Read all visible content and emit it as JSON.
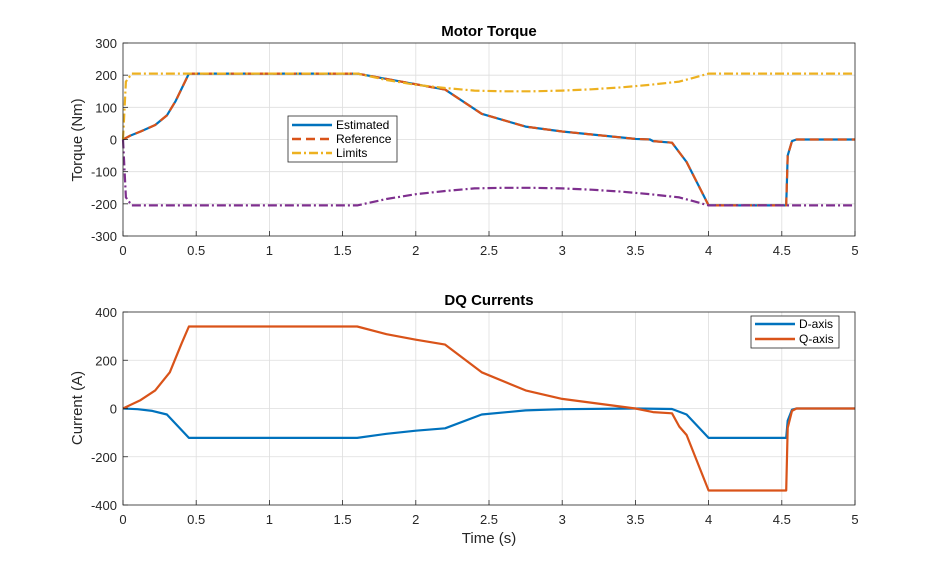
{
  "chart_data": [
    {
      "type": "line",
      "title": "Motor Torque",
      "xlabel": "",
      "ylabel": "Torque (Nm)",
      "xlim": [
        0,
        5
      ],
      "ylim": [
        -300,
        300
      ],
      "xticks": [
        0,
        0.5,
        1,
        1.5,
        2,
        2.5,
        3,
        3.5,
        4,
        4.5,
        5
      ],
      "xtick_labels": [
        "0",
        "0.5",
        "1",
        "1.5",
        "2",
        "2.5",
        "3",
        "3.5",
        "4",
        "4.5",
        "5"
      ],
      "yticks": [
        300,
        200,
        100,
        0,
        -100,
        -200,
        -300
      ],
      "ytick_labels": [
        "300",
        "200",
        "100",
        "0",
        "-100",
        "-200",
        "-300"
      ],
      "grid": true,
      "legend": "center-left",
      "series": [
        {
          "name": "Estimated",
          "color": "#0072BD",
          "style": "solid",
          "in_legend": true,
          "x": [
            0,
            0.05,
            0.12,
            0.22,
            0.3,
            0.36,
            0.45,
            1.6,
            2.2,
            2.45,
            2.75,
            3.0,
            3.5,
            3.6,
            3.62,
            3.75,
            3.8,
            3.85,
            4.0,
            4.53,
            4.54,
            4.57,
            4.6,
            5.0
          ],
          "y": [
            0,
            12,
            25,
            45,
            75,
            120,
            205,
            205,
            155,
            80,
            40,
            25,
            2,
            0,
            -5,
            -10,
            -40,
            -70,
            -205,
            -205,
            -50,
            -5,
            0,
            0
          ]
        },
        {
          "name": "Reference",
          "color": "#D95319",
          "style": "dashed",
          "in_legend": true,
          "x": [
            0,
            0.05,
            0.12,
            0.22,
            0.3,
            0.36,
            0.45,
            1.6,
            2.2,
            2.45,
            2.75,
            3.0,
            3.5,
            3.6,
            3.62,
            3.75,
            3.8,
            3.85,
            4.0,
            4.53,
            4.54,
            4.57,
            4.6,
            5.0
          ],
          "y": [
            0,
            12,
            25,
            45,
            75,
            120,
            205,
            205,
            155,
            80,
            40,
            25,
            2,
            0,
            -5,
            -10,
            -40,
            -70,
            -205,
            -205,
            -50,
            -5,
            0,
            0
          ]
        },
        {
          "name": "Limits",
          "color": "#EDB120",
          "style": "dashdot",
          "in_legend": true,
          "x": [
            0,
            0.02,
            0.06,
            1.6,
            1.8,
            2.0,
            2.2,
            2.4,
            2.6,
            2.8,
            3.0,
            3.2,
            3.4,
            3.6,
            3.8,
            3.9,
            4.0,
            5.0
          ],
          "y": [
            0,
            180,
            205,
            205,
            185,
            170,
            160,
            152,
            150,
            150,
            152,
            156,
            162,
            170,
            180,
            192,
            205,
            205
          ]
        },
        {
          "name": "",
          "color": "#7E2F8E",
          "style": "dashdot",
          "in_legend": false,
          "x": [
            0,
            0.02,
            0.06,
            1.6,
            1.8,
            2.0,
            2.2,
            2.4,
            2.6,
            2.8,
            3.0,
            3.2,
            3.4,
            3.6,
            3.8,
            3.9,
            4.0,
            5.0
          ],
          "y": [
            0,
            -180,
            -205,
            -205,
            -185,
            -170,
            -160,
            -152,
            -150,
            -150,
            -152,
            -156,
            -162,
            -170,
            -180,
            -192,
            -205,
            -205
          ]
        }
      ]
    },
    {
      "type": "line",
      "title": "DQ Currents",
      "xlabel": "Time (s)",
      "ylabel": "Current (A)",
      "xlim": [
        0,
        5
      ],
      "ylim": [
        -400,
        400
      ],
      "xticks": [
        0,
        0.5,
        1,
        1.5,
        2,
        2.5,
        3,
        3.5,
        4,
        4.5,
        5
      ],
      "xtick_labels": [
        "0",
        "0.5",
        "1",
        "1.5",
        "2",
        "2.5",
        "3",
        "3.5",
        "4",
        "4.5",
        "5"
      ],
      "yticks": [
        400,
        200,
        0,
        -200,
        -400
      ],
      "ytick_labels": [
        "400",
        "200",
        "0",
        "-200",
        "-400"
      ],
      "grid": true,
      "legend": "top-right",
      "series": [
        {
          "name": "D-axis",
          "color": "#0072BD",
          "style": "solid",
          "in_legend": true,
          "x": [
            0,
            0.1,
            0.2,
            0.3,
            0.45,
            1.6,
            1.8,
            2.0,
            2.2,
            2.45,
            2.75,
            3.0,
            3.5,
            3.75,
            3.85,
            4.0,
            4.53,
            4.54,
            4.57,
            4.6,
            5.0
          ],
          "y": [
            0,
            -3,
            -10,
            -25,
            -122,
            -122,
            -105,
            -92,
            -82,
            -25,
            -8,
            -3,
            0,
            -2,
            -25,
            -122,
            -122,
            -50,
            -5,
            0,
            0
          ]
        },
        {
          "name": "Q-axis",
          "color": "#D95319",
          "style": "solid",
          "in_legend": true,
          "x": [
            0,
            0.12,
            0.22,
            0.32,
            0.4,
            0.45,
            1.6,
            1.8,
            2.0,
            2.2,
            2.45,
            2.75,
            3.0,
            3.5,
            3.62,
            3.75,
            3.8,
            3.85,
            4.0,
            4.53,
            4.54,
            4.57,
            4.6,
            5.0
          ],
          "y": [
            0,
            35,
            75,
            150,
            270,
            340,
            340,
            308,
            285,
            265,
            150,
            75,
            40,
            0,
            -15,
            -20,
            -75,
            -110,
            -340,
            -340,
            -80,
            -10,
            0,
            0
          ]
        }
      ]
    }
  ]
}
